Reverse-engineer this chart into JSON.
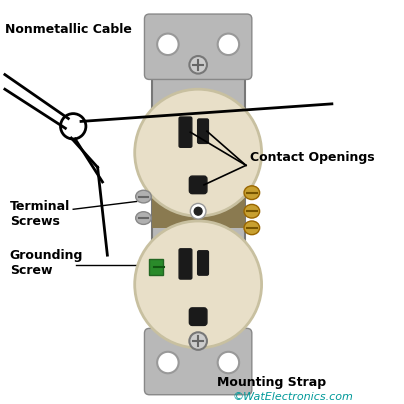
{
  "bg_color": "#ffffff",
  "outlet_body_color": "#e8dfc8",
  "strap_color": "#b8b8b8",
  "strap_dark": "#999999",
  "middle_band_color": "#8a7a50",
  "screw_silver": "#b0b0b0",
  "screw_gold": "#c8a030",
  "screw_green": "#2a8a2a",
  "slot_color": "#1a1a1a",
  "label_nonmetallic": "Nonmetallic Cable",
  "label_contact": "Contact Openings",
  "label_terminal": "Terminal\nScrews",
  "label_grounding": "Grounding\nScrew",
  "label_mounting": "Mounting Strap",
  "label_watermark": "©WatElectronics.com",
  "font_size_label": 9,
  "font_size_watermark": 8
}
